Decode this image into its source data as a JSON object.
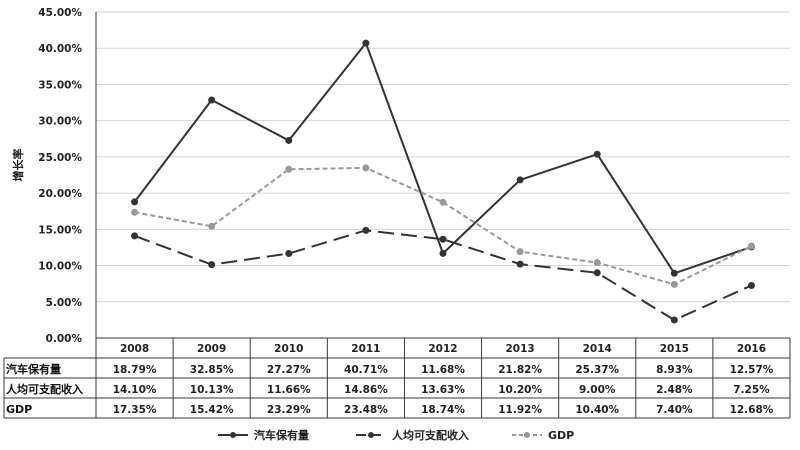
{
  "chart_data": {
    "type": "line",
    "title": "",
    "xlabel": "",
    "ylabel": "增长率",
    "ylim": [
      0,
      45
    ],
    "y_tick_labels": [
      "0.00%",
      "5.00%",
      "10.00%",
      "15.00%",
      "20.00%",
      "25.00%",
      "30.00%",
      "35.00%",
      "40.00%",
      "45.00%"
    ],
    "y_tick_values": [
      0,
      5,
      10,
      15,
      20,
      25,
      30,
      35,
      40,
      45
    ],
    "categories": [
      "2008",
      "2009",
      "2010",
      "2011",
      "2012",
      "2013",
      "2014",
      "2015",
      "2016"
    ],
    "grid": true,
    "legend_position": "bottom",
    "series": [
      {
        "name": "汽车保有量",
        "values": [
          18.79,
          32.85,
          27.27,
          40.71,
          11.68,
          21.82,
          25.37,
          8.93,
          12.57
        ],
        "labels": [
          "18.79%",
          "32.85%",
          "27.27%",
          "40.71%",
          "11.68%",
          "21.82%",
          "25.37%",
          "8.93%",
          "12.57%"
        ],
        "color": "#333333",
        "dash": "solid"
      },
      {
        "name": "人均可支配收入",
        "values": [
          14.1,
          10.13,
          11.66,
          14.86,
          13.63,
          10.2,
          9.0,
          2.48,
          7.25
        ],
        "labels": [
          "14.10%",
          "10.13%",
          "11.66%",
          "14.86%",
          "13.63%",
          "10.20%",
          "9.00%",
          "2.48%",
          "7.25%"
        ],
        "color": "#333333",
        "dash": "long-dash"
      },
      {
        "name": "GDP",
        "values": [
          17.35,
          15.42,
          23.29,
          23.48,
          18.74,
          11.92,
          10.4,
          7.4,
          12.68
        ],
        "labels": [
          "17.35%",
          "15.42%",
          "23.29%",
          "23.48%",
          "18.74%",
          "11.92%",
          "10.40%",
          "7.40%",
          "12.68%"
        ],
        "color": "#999999",
        "dash": "short-dash"
      }
    ]
  }
}
